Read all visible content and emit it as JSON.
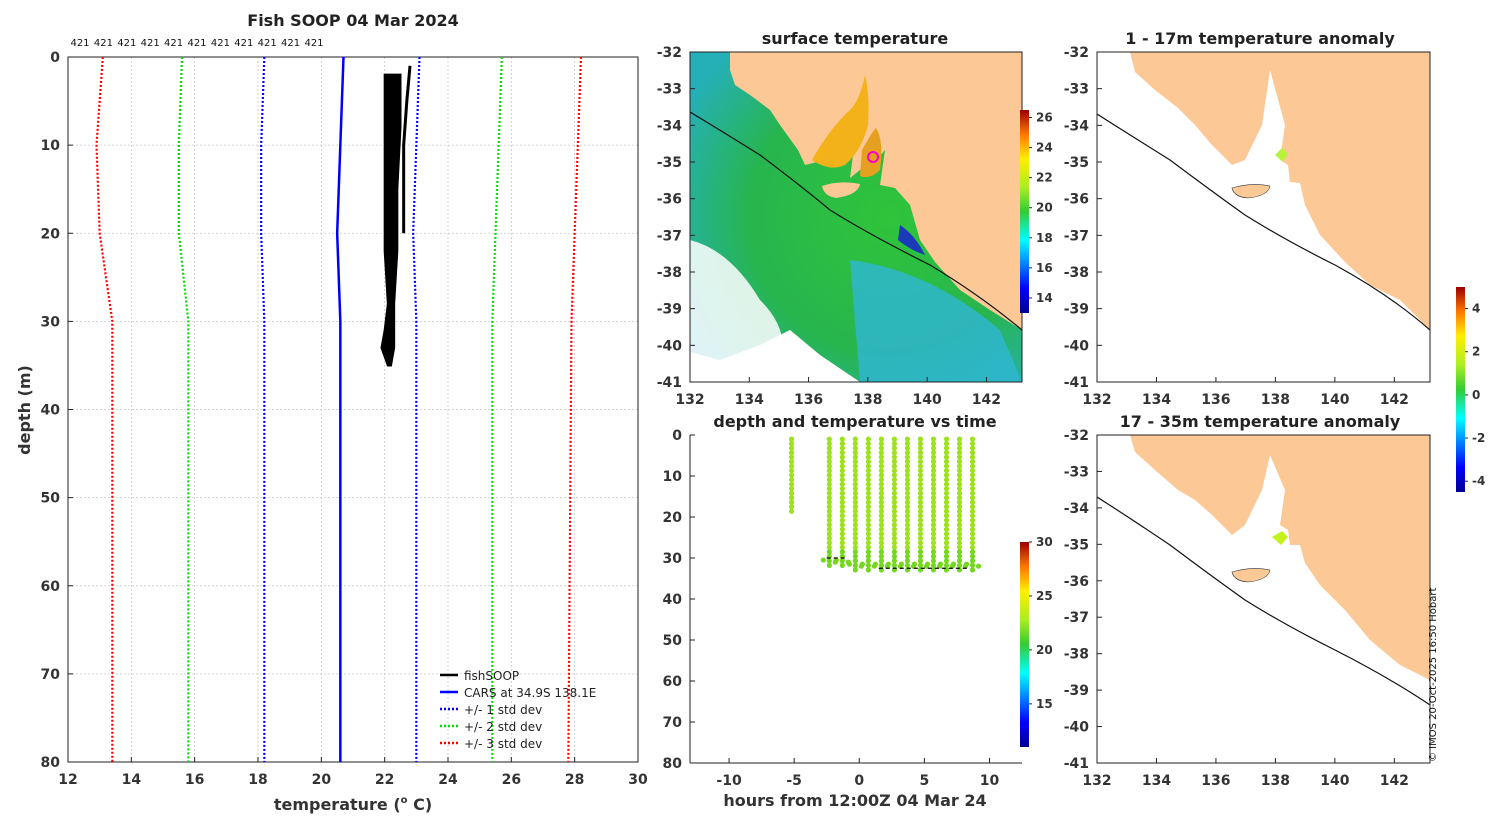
{
  "colors": {
    "land": "#FCC896",
    "sea_white": "#ffffff",
    "fish": "#000000",
    "cars": "#0000ff",
    "std1": "#0000ff",
    "std2": "#00dd00",
    "std3": "#ff0000"
  },
  "chart_data": [
    {
      "id": "profile",
      "type": "line",
      "title": "Fish SOOP 04 Mar 2024",
      "xlabel": "temperature (",
      "xlabel_sup": "o",
      "xlabel_tail": " C)",
      "ylabel": "depth (m)",
      "xlim": [
        12,
        30
      ],
      "ylim": [
        80,
        0
      ],
      "xticks": [
        12,
        14,
        16,
        18,
        20,
        22,
        24,
        26,
        28,
        30
      ],
      "yticks": [
        0,
        10,
        20,
        30,
        40,
        50,
        60,
        70,
        80
      ],
      "counts": [
        "421",
        "421",
        "421",
        "421",
        "421",
        "421",
        "421",
        "421",
        "421",
        "421",
        "421"
      ],
      "legend": [
        "fishSOOP",
        "CARS at 34.9S 138.1E",
        "+/- 1 std dev",
        "+/- 2 std dev",
        "+/- 3 std dev"
      ],
      "series": [
        {
          "name": "CARS",
          "depth": [
            0,
            10,
            20,
            30,
            80
          ],
          "temp": [
            20.7,
            20.6,
            20.5,
            20.6,
            20.6
          ]
        },
        {
          "name": "+1 std",
          "depth": [
            0,
            10,
            20,
            30,
            80
          ],
          "temp": [
            23.1,
            23.0,
            22.9,
            23.0,
            23.0
          ]
        },
        {
          "name": "-1 std",
          "depth": [
            0,
            10,
            20,
            30,
            80
          ],
          "temp": [
            18.2,
            18.1,
            18.1,
            18.2,
            18.2
          ]
        },
        {
          "name": "+2 std",
          "depth": [
            0,
            10,
            20,
            30,
            80
          ],
          "temp": [
            25.7,
            25.6,
            25.5,
            25.4,
            25.4
          ]
        },
        {
          "name": "-2 std",
          "depth": [
            0,
            10,
            20,
            30,
            80
          ],
          "temp": [
            15.6,
            15.5,
            15.5,
            15.8,
            15.8
          ]
        },
        {
          "name": "+3 std",
          "depth": [
            0,
            10,
            20,
            30,
            80
          ],
          "temp": [
            28.2,
            28.1,
            28.0,
            27.9,
            27.8
          ]
        },
        {
          "name": "-3 std",
          "depth": [
            0,
            10,
            20,
            30,
            80
          ],
          "temp": [
            13.1,
            12.9,
            13.0,
            13.4,
            13.4
          ]
        },
        {
          "name": "fishSOOP",
          "depth": [
            2,
            8,
            15,
            22,
            28,
            31,
            33,
            35
          ],
          "temp_lo": [
            22.0,
            22.0,
            22.0,
            22.0,
            22.1,
            22.0,
            21.9,
            22.1
          ],
          "temp_hi": [
            22.5,
            22.5,
            22.4,
            22.4,
            22.3,
            22.3,
            22.3,
            22.2
          ]
        },
        {
          "name": "fishSOOP-2",
          "depth": [
            1,
            5,
            10,
            20
          ],
          "temp": [
            22.8,
            22.7,
            22.6,
            22.6
          ]
        }
      ]
    },
    {
      "id": "sst",
      "type": "heatmap",
      "title": "surface temperature",
      "xlim": [
        132,
        143.2
      ],
      "ylim": [
        -41,
        -32
      ],
      "xticks": [
        132,
        134,
        136,
        138,
        140,
        142
      ],
      "yticks": [
        -32,
        -33,
        -34,
        -35,
        -36,
        -37,
        -38,
        -39,
        -40,
        -41
      ],
      "colorbar": {
        "ticks": [
          14,
          16,
          18,
          20,
          22,
          24,
          26
        ],
        "range": [
          13,
          26.5
        ]
      }
    },
    {
      "id": "depthtime",
      "type": "scatter",
      "title": "depth and temperature vs time",
      "xlabel": "hours from 12:00Z 04 Mar 24",
      "xlim": [
        -13,
        12.5
      ],
      "ylim": [
        80,
        0
      ],
      "xticks": [
        -10,
        -5,
        0,
        5,
        10
      ],
      "yticks": [
        0,
        10,
        20,
        30,
        40,
        50,
        60,
        70,
        80
      ],
      "colorbar": {
        "ticks": [
          15,
          20,
          25,
          30
        ],
        "range": [
          11,
          30
        ]
      },
      "profiles_hours": [
        -5.2,
        -2.3,
        -1.3,
        -0.3,
        0.7,
        1.7,
        2.7,
        3.7,
        4.7,
        5.7,
        6.7,
        7.7,
        8.7
      ],
      "profiles_maxdepth": [
        19,
        32,
        32,
        33,
        33,
        33,
        33,
        33,
        33,
        33,
        33,
        33,
        33
      ]
    },
    {
      "id": "anom1",
      "type": "heatmap",
      "title": "1 - 17m temperature anomaly",
      "xlim": [
        132,
        143.2
      ],
      "ylim": [
        -41,
        -32
      ],
      "xticks": [
        132,
        134,
        136,
        138,
        140,
        142
      ],
      "yticks": [
        -32,
        -33,
        -34,
        -35,
        -36,
        -37,
        -38,
        -39,
        -40,
        -41
      ],
      "colorbar": {
        "ticks": [
          4,
          2,
          0,
          -2,
          -4
        ],
        "range": [
          -4.5,
          5
        ]
      }
    },
    {
      "id": "anom2",
      "type": "heatmap",
      "title": "17 - 35m temperature anomaly",
      "xlim": [
        132,
        143.2
      ],
      "ylim": [
        -41,
        -32
      ],
      "xticks": [
        132,
        134,
        136,
        138,
        140,
        142
      ],
      "yticks": [
        -32,
        -33,
        -34,
        -35,
        -36,
        -37,
        -38,
        -39,
        -40,
        -41
      ]
    }
  ],
  "credit": "© IMOS 20-Oct-2025 16:50 Hobart"
}
